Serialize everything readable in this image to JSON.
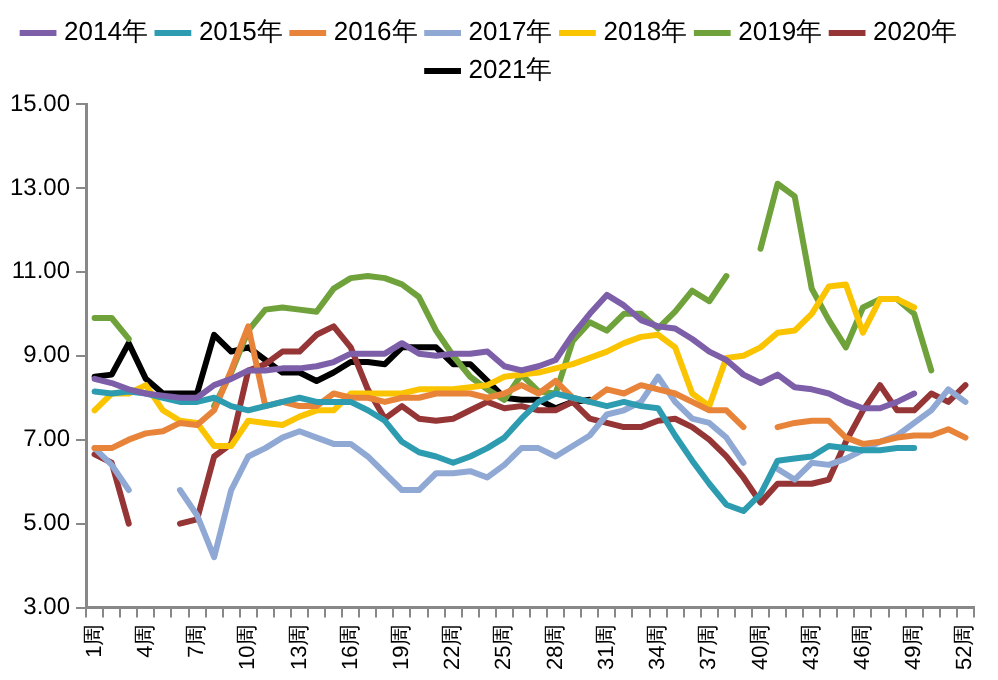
{
  "chart_data": {
    "type": "line",
    "categories": [
      "1周",
      null,
      null,
      "4周",
      null,
      null,
      "7周",
      null,
      null,
      "10周",
      null,
      null,
      "13周",
      null,
      null,
      "16周",
      null,
      null,
      "19周",
      null,
      null,
      "22周",
      null,
      null,
      "25周",
      null,
      null,
      "28周",
      null,
      null,
      "31周",
      null,
      null,
      "34周",
      null,
      null,
      "37周",
      null,
      null,
      "40周",
      null,
      null,
      "43周",
      null,
      null,
      "46周",
      null,
      null,
      "49周",
      null,
      null,
      "52周"
    ],
    "ylim": [
      3,
      15
    ],
    "yticks": [
      {
        "value": 3,
        "label": "3.00"
      },
      {
        "value": 5,
        "label": "5.00"
      },
      {
        "value": 7,
        "label": "7.00"
      },
      {
        "value": 9,
        "label": "9.00"
      },
      {
        "value": 11,
        "label": "11.00"
      },
      {
        "value": 13,
        "label": "13.00"
      },
      {
        "value": 15,
        "label": "15.00"
      }
    ],
    "grid": false,
    "legend": "top",
    "marker": "none",
    "line_style": "solid",
    "series": [
      {
        "name": "2014年",
        "color": "#7d5ea8",
        "values": [
          8.45,
          8.35,
          8.2,
          8.1,
          8.05,
          8.0,
          8.0,
          8.3,
          8.45,
          8.65,
          8.65,
          8.7,
          8.7,
          8.75,
          8.85,
          9.05,
          9.05,
          9.05,
          9.3,
          9.05,
          9.0,
          9.05,
          9.05,
          9.1,
          8.75,
          8.65,
          8.75,
          8.9,
          9.5,
          10.0,
          10.45,
          10.2,
          9.85,
          9.7,
          9.65,
          9.4,
          9.1,
          8.9,
          8.55,
          8.35,
          8.55,
          8.25,
          8.2,
          8.1,
          7.9,
          7.75,
          7.75,
          7.9,
          8.1,
          null,
          null,
          null
        ]
      },
      {
        "name": "2015年",
        "color": "#2e9cb0",
        "values": [
          8.15,
          8.1,
          8.15,
          8.1,
          8.0,
          7.9,
          7.9,
          8.0,
          7.8,
          7.7,
          7.8,
          7.9,
          8.0,
          7.9,
          7.9,
          7.9,
          7.7,
          7.45,
          6.95,
          6.7,
          6.6,
          6.45,
          6.6,
          6.8,
          7.05,
          7.5,
          7.9,
          8.1,
          8.0,
          7.9,
          7.8,
          7.9,
          7.8,
          7.75,
          7.1,
          6.5,
          5.95,
          5.45,
          5.3,
          5.7,
          6.5,
          6.55,
          6.6,
          6.85,
          6.8,
          6.75,
          6.75,
          6.8,
          6.8,
          null,
          null,
          null
        ]
      },
      {
        "name": "2016年",
        "color": "#e8843a",
        "values": [
          6.8,
          6.8,
          7.0,
          7.15,
          7.2,
          7.4,
          7.35,
          7.7,
          8.65,
          9.7,
          7.8,
          7.9,
          7.8,
          7.8,
          8.1,
          8.0,
          8.0,
          7.9,
          8.0,
          8.0,
          8.1,
          8.1,
          8.1,
          8.0,
          8.1,
          8.3,
          8.1,
          8.4,
          8.0,
          7.9,
          8.2,
          8.1,
          8.3,
          8.2,
          8.1,
          7.9,
          7.7,
          7.7,
          7.3,
          null,
          7.3,
          7.4,
          7.45,
          7.45,
          7.05,
          6.9,
          6.95,
          7.05,
          7.1,
          7.1,
          7.25,
          7.05
        ]
      },
      {
        "name": "2017年",
        "color": "#8fa9d4",
        "values": [
          6.8,
          6.4,
          5.8,
          null,
          null,
          5.8,
          5.2,
          4.2,
          5.8,
          6.6,
          6.8,
          7.05,
          7.2,
          7.05,
          6.9,
          6.9,
          6.6,
          6.2,
          5.8,
          5.8,
          6.2,
          6.2,
          6.25,
          6.1,
          6.4,
          6.8,
          6.8,
          6.6,
          6.85,
          7.1,
          7.6,
          7.7,
          7.9,
          8.5,
          7.9,
          7.5,
          7.4,
          7.05,
          6.45,
          null,
          6.3,
          6.05,
          6.45,
          6.4,
          6.55,
          6.75,
          6.95,
          7.1,
          7.4,
          7.7,
          8.2,
          7.9
        ]
      },
      {
        "name": "2018年",
        "color": "#fbc400",
        "values": [
          7.7,
          8.1,
          8.1,
          8.3,
          7.7,
          7.45,
          7.4,
          6.85,
          6.85,
          7.45,
          7.4,
          7.35,
          7.55,
          7.7,
          7.7,
          8.1,
          8.1,
          8.1,
          8.1,
          8.2,
          8.2,
          8.2,
          8.25,
          8.3,
          8.5,
          8.55,
          8.6,
          8.7,
          8.8,
          8.95,
          9.1,
          9.3,
          9.45,
          9.5,
          9.2,
          8.1,
          7.8,
          8.95,
          9.0,
          9.2,
          9.55,
          9.6,
          10.0,
          10.65,
          10.7,
          9.55,
          10.35,
          10.35,
          10.15,
          null,
          null,
          null
        ]
      },
      {
        "name": "2019年",
        "color": "#70a23c",
        "values": [
          9.9,
          9.9,
          9.4,
          null,
          null,
          null,
          null,
          7.8,
          8.6,
          9.6,
          10.1,
          10.15,
          10.1,
          10.05,
          10.6,
          10.85,
          10.9,
          10.85,
          10.7,
          10.4,
          9.6,
          9.0,
          8.5,
          8.2,
          7.95,
          8.55,
          8.15,
          8.1,
          9.35,
          9.8,
          9.6,
          10.0,
          10.0,
          9.65,
          10.05,
          10.55,
          10.3,
          10.9,
          null,
          11.55,
          13.1,
          12.8,
          10.6,
          9.85,
          9.2,
          10.15,
          10.35,
          10.35,
          10.0,
          8.65,
          null,
          null
        ]
      },
      {
        "name": "2020年",
        "color": "#963535",
        "values": [
          6.65,
          6.45,
          5.0,
          null,
          null,
          5.0,
          5.1,
          6.6,
          6.9,
          8.65,
          8.8,
          9.1,
          9.1,
          9.5,
          9.7,
          9.2,
          8.2,
          7.5,
          7.8,
          7.5,
          7.45,
          7.5,
          7.7,
          7.9,
          7.75,
          7.8,
          7.7,
          7.7,
          7.9,
          7.5,
          7.4,
          7.3,
          7.3,
          7.45,
          7.5,
          7.3,
          7.0,
          6.6,
          6.1,
          5.5,
          5.95,
          5.95,
          5.95,
          6.05,
          6.95,
          7.7,
          8.3,
          7.7,
          7.7,
          8.1,
          7.9,
          8.3
        ]
      },
      {
        "name": "2021年",
        "color": "#000000",
        "values": [
          8.5,
          8.55,
          9.3,
          8.45,
          8.1,
          8.1,
          8.1,
          9.5,
          9.1,
          9.2,
          8.9,
          8.6,
          8.6,
          8.4,
          8.6,
          8.85,
          8.85,
          8.8,
          9.2,
          9.2,
          9.2,
          8.8,
          8.8,
          8.4,
          8.0,
          7.95,
          7.95,
          7.75,
          7.9,
          7.95,
          null,
          null,
          null,
          null,
          null,
          null,
          null,
          null,
          null,
          null,
          null,
          null,
          null,
          null,
          null,
          null,
          null,
          null,
          null,
          null,
          null,
          null
        ]
      }
    ]
  }
}
